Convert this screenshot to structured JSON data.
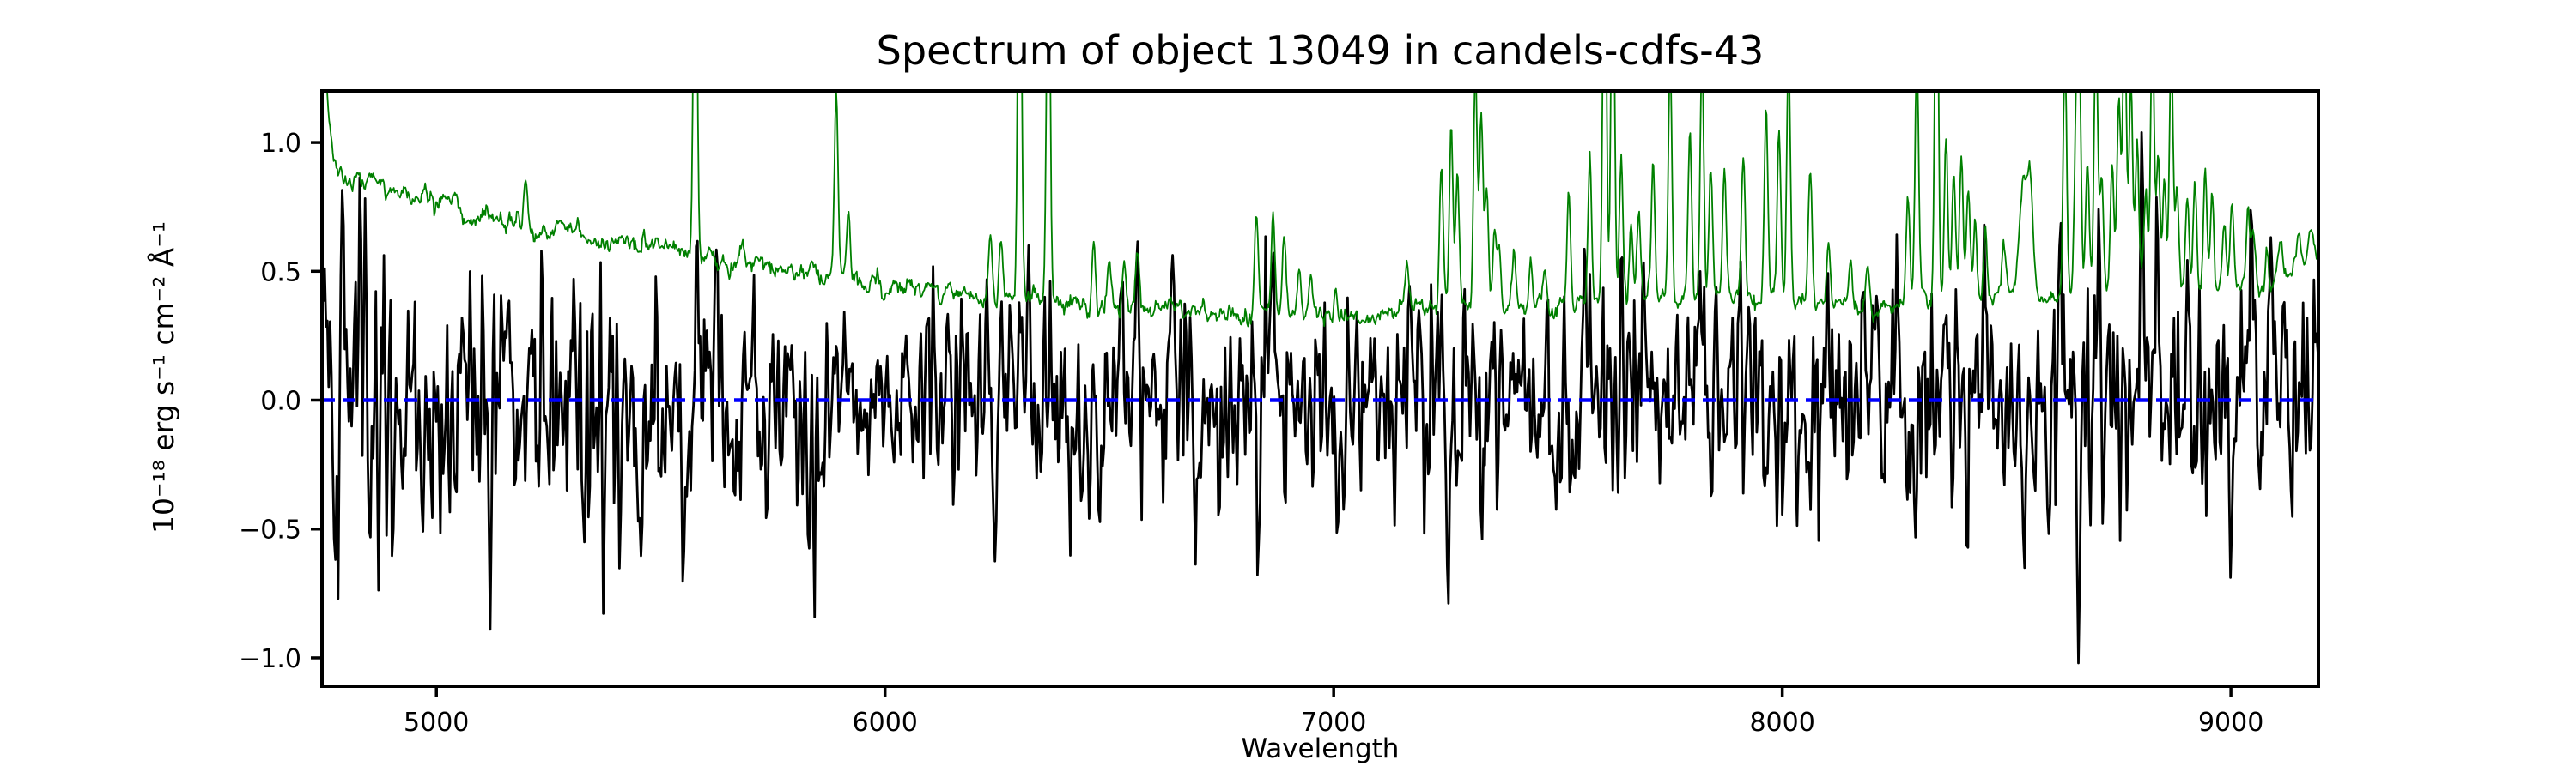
{
  "chart_data": {
    "type": "line",
    "title": "Spectrum of object 13049 in candels-cdfs-43",
    "xlabel": "Wavelength",
    "ylabel": "10⁻¹⁸ erg s⁻¹ cm⁻² Å⁻¹",
    "background_color": "#ffffff",
    "grid": false,
    "legend_position": "none",
    "xlim": [
      4745,
      9195
    ],
    "ylim": [
      -1.11,
      1.2
    ],
    "xticks": {
      "values": [
        5000,
        6000,
        7000,
        8000,
        9000
      ],
      "labels": [
        "5000",
        "6000",
        "7000",
        "8000",
        "9000"
      ]
    },
    "yticks": {
      "values": [
        1.0,
        0.5,
        0.0,
        -0.5,
        -1.0
      ],
      "labels": [
        "1.0",
        "0.5",
        "0.0",
        "−0.5",
        "−1.0"
      ]
    },
    "series": [
      {
        "name": "flux",
        "description": "observed flux, noisy spectrum around zero",
        "color": "#000000",
        "linewidth": 2.8,
        "sample_step": 3,
        "noise_seed": 20497,
        "sigma_envelope": [
          [
            4745,
            0.36
          ],
          [
            4800,
            0.4
          ],
          [
            4860,
            0.4
          ],
          [
            4950,
            0.34
          ],
          [
            5050,
            0.32
          ],
          [
            5200,
            0.31
          ],
          [
            5350,
            0.29
          ],
          [
            5500,
            0.27
          ],
          [
            5700,
            0.25
          ],
          [
            5900,
            0.245
          ],
          [
            6100,
            0.235
          ],
          [
            6300,
            0.23
          ],
          [
            6500,
            0.235
          ],
          [
            6700,
            0.225
          ],
          [
            6900,
            0.22
          ],
          [
            7100,
            0.23
          ],
          [
            7300,
            0.24
          ],
          [
            7500,
            0.225
          ],
          [
            7700,
            0.235
          ],
          [
            7900,
            0.235
          ],
          [
            8100,
            0.24
          ],
          [
            8250,
            0.26
          ],
          [
            8400,
            0.26
          ],
          [
            8550,
            0.27
          ],
          [
            8700,
            0.29
          ],
          [
            8850,
            0.3
          ],
          [
            9000,
            0.27
          ],
          [
            9100,
            0.28
          ],
          [
            9195,
            0.3
          ]
        ],
        "spike_sigma": 3,
        "spikes": [
          [
            4791,
            0.86
          ],
          [
            4830,
            0.92
          ],
          [
            5120,
            -0.89
          ],
          [
            5235,
            0.64
          ],
          [
            5330,
            -0.55
          ],
          [
            5455,
            -0.63
          ],
          [
            5550,
            -0.74
          ],
          [
            5580,
            0.62
          ],
          [
            5830,
            -0.6
          ],
          [
            6246,
            -0.66
          ],
          [
            6320,
            0.6
          ],
          [
            6562,
            0.66
          ],
          [
            6640,
            0.58
          ],
          [
            6865,
            0.6
          ],
          [
            7255,
            -0.86
          ],
          [
            7560,
            0.62
          ],
          [
            7690,
            0.55
          ],
          [
            8296,
            -0.56
          ],
          [
            8450,
            0.68
          ],
          [
            8540,
            -0.65
          ],
          [
            8620,
            0.75
          ],
          [
            8660,
            -1.02
          ],
          [
            8802,
            1.1
          ],
          [
            8835,
            0.84
          ],
          [
            9045,
            0.8
          ],
          [
            9090,
            0.66
          ]
        ]
      },
      {
        "name": "sky-noise",
        "description": "noise / sky spectrum with OH emission lines",
        "color": "#008000",
        "linewidth": 1.8,
        "sample_step": 2,
        "noise_seed": 911,
        "baseline": [
          [
            4745,
            1.6
          ],
          [
            4758,
            1.15
          ],
          [
            4768,
            0.97
          ],
          [
            4782,
            0.89
          ],
          [
            4800,
            0.86
          ],
          [
            4830,
            0.865
          ],
          [
            4860,
            0.84
          ],
          [
            4900,
            0.82
          ],
          [
            4950,
            0.8
          ],
          [
            5000,
            0.78
          ],
          [
            5060,
            0.75
          ],
          [
            5120,
            0.72
          ],
          [
            5200,
            0.67
          ],
          [
            5280,
            0.645
          ],
          [
            5360,
            0.615
          ],
          [
            5440,
            0.595
          ],
          [
            5520,
            0.575
          ],
          [
            5600,
            0.55
          ],
          [
            5700,
            0.525
          ],
          [
            5800,
            0.5
          ],
          [
            5900,
            0.47
          ],
          [
            6000,
            0.445
          ],
          [
            6100,
            0.42
          ],
          [
            6200,
            0.4
          ],
          [
            6300,
            0.39
          ],
          [
            6400,
            0.375
          ],
          [
            6500,
            0.363
          ],
          [
            6600,
            0.352
          ],
          [
            6700,
            0.342
          ],
          [
            6800,
            0.336
          ],
          [
            6900,
            0.33
          ],
          [
            7000,
            0.33
          ],
          [
            7100,
            0.338
          ],
          [
            7200,
            0.358
          ],
          [
            7300,
            0.368
          ],
          [
            7400,
            0.368
          ],
          [
            7480,
            0.355
          ],
          [
            7560,
            0.36
          ],
          [
            7650,
            0.378
          ],
          [
            7750,
            0.395
          ],
          [
            7850,
            0.39
          ],
          [
            7950,
            0.385
          ],
          [
            8050,
            0.378
          ],
          [
            8150,
            0.366
          ],
          [
            8220,
            0.358
          ],
          [
            8300,
            0.378
          ],
          [
            8400,
            0.388
          ],
          [
            8500,
            0.398
          ],
          [
            8600,
            0.41
          ],
          [
            8700,
            0.425
          ],
          [
            8800,
            0.43
          ],
          [
            8900,
            0.42
          ],
          [
            9000,
            0.42
          ],
          [
            9080,
            0.43
          ],
          [
            9140,
            0.5
          ],
          [
            9195,
            0.58
          ]
        ],
        "emission_lines": [
          [
            5199,
            0.84,
            4
          ],
          [
            5461,
            0.66,
            4
          ],
          [
            5577,
            2.2,
            4
          ],
          [
            5683,
            0.6,
            4
          ],
          [
            5891,
            1.17,
            4
          ],
          [
            5918,
            0.72,
            4
          ],
          [
            6235,
            0.65,
            4
          ],
          [
            6258,
            0.62,
            4
          ],
          [
            6300,
            2.2,
            4
          ],
          [
            6364,
            2.0,
            4
          ],
          [
            6465,
            0.63,
            4
          ],
          [
            6499,
            0.52,
            4
          ],
          [
            6533,
            0.56,
            4
          ],
          [
            6563,
            0.54,
            4
          ],
          [
            6828,
            0.73,
            4
          ],
          [
            6865,
            0.71,
            4
          ],
          [
            6890,
            0.62,
            4
          ],
          [
            6923,
            0.52,
            4
          ],
          [
            6949,
            0.48,
            4
          ],
          [
            7004,
            0.45,
            4
          ],
          [
            7164,
            0.5,
            4
          ],
          [
            7240,
            0.92,
            4
          ],
          [
            7262,
            1.02,
            4
          ],
          [
            7276,
            0.88,
            4
          ],
          [
            7316,
            1.35,
            4
          ],
          [
            7329,
            1.12,
            4
          ],
          [
            7341,
            0.82,
            4
          ],
          [
            7359,
            0.68,
            4
          ],
          [
            7369,
            0.6,
            4
          ],
          [
            7402,
            0.56,
            4
          ],
          [
            7440,
            0.52,
            4
          ],
          [
            7471,
            0.5,
            4
          ],
          [
            7524,
            0.8,
            4
          ],
          [
            7571,
            0.92,
            4
          ],
          [
            7604,
            2.0,
            4
          ],
          [
            7622,
            1.9,
            4
          ],
          [
            7641,
            0.95,
            4
          ],
          [
            7663,
            0.7,
            4
          ],
          [
            7680,
            0.75,
            4
          ],
          [
            7712,
            0.93,
            4
          ],
          [
            7750,
            1.35,
            4
          ],
          [
            7794,
            1.02,
            4
          ],
          [
            7821,
            1.32,
            4
          ],
          [
            7841,
            0.92,
            4
          ],
          [
            7871,
            0.86,
            4
          ],
          [
            7913,
            0.96,
            4
          ],
          [
            7964,
            1.12,
            4
          ],
          [
            7993,
            1.02,
            4
          ],
          [
            8014,
            1.35,
            4
          ],
          [
            8062,
            0.92,
            4
          ],
          [
            8103,
            0.6,
            4
          ],
          [
            8152,
            0.56,
            4
          ],
          [
            8190,
            0.52,
            4
          ],
          [
            8280,
            0.78,
            4
          ],
          [
            8300,
            1.35,
            4
          ],
          [
            8344,
            2.0,
            4
          ],
          [
            8365,
            1.05,
            4
          ],
          [
            8382,
            0.88,
            4
          ],
          [
            8399,
            0.92,
            4
          ],
          [
            8415,
            0.82,
            4
          ],
          [
            8430,
            0.72,
            4
          ],
          [
            8452,
            0.66,
            4
          ],
          [
            8493,
            0.58,
            4
          ],
          [
            8538,
            0.82,
            10
          ],
          [
            8553,
            0.76,
            6
          ],
          [
            8630,
            1.35,
            4
          ],
          [
            8655,
            1.05,
            4
          ],
          [
            8662,
            1.35,
            4
          ],
          [
            8680,
            0.92,
            4
          ],
          [
            8699,
            1.45,
            4
          ],
          [
            8712,
            0.85,
            4
          ],
          [
            8735,
            0.92,
            4
          ],
          [
            8750,
            1.12,
            4
          ],
          [
            8763,
            1.55,
            4
          ],
          [
            8777,
            1.25,
            4
          ],
          [
            8791,
            1.02,
            4
          ],
          [
            8810,
            0.82,
            4
          ],
          [
            8825,
            1.48,
            4
          ],
          [
            8838,
            0.92,
            4
          ],
          [
            8852,
            0.86,
            4
          ],
          [
            8867,
            1.35,
            4
          ],
          [
            8880,
            0.82,
            4
          ],
          [
            8903,
            0.76,
            4
          ],
          [
            8920,
            0.86,
            4
          ],
          [
            8943,
            0.92,
            4
          ],
          [
            8958,
            0.82,
            4
          ],
          [
            8985,
            0.72,
            4
          ],
          [
            9002,
            0.76,
            4
          ],
          [
            9038,
            0.76,
            4
          ],
          [
            9050,
            0.68,
            4
          ],
          [
            9080,
            0.6,
            4
          ],
          [
            9110,
            0.62,
            6
          ],
          [
            9150,
            0.63,
            6
          ],
          [
            9178,
            0.66,
            6
          ]
        ]
      },
      {
        "name": "zero-line",
        "description": "horizontal reference line at flux = 0",
        "color": "#0000ff",
        "linewidth": 4.5,
        "dash": [
          15,
          9
        ],
        "y": 0.0
      }
    ]
  }
}
